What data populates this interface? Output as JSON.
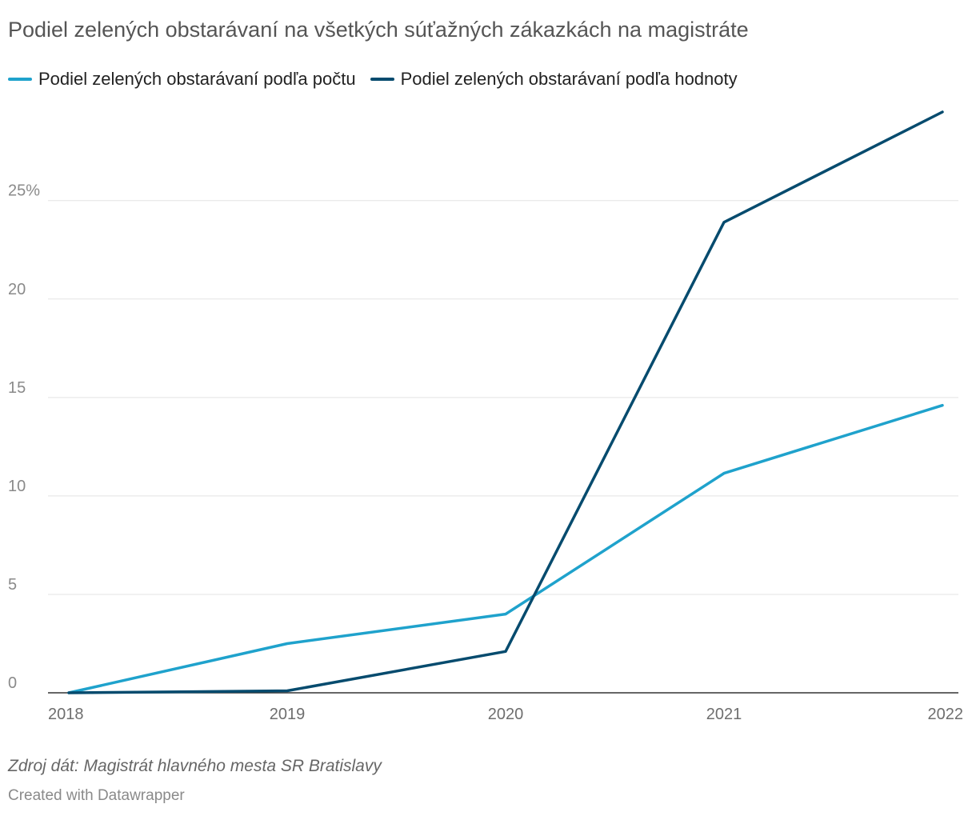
{
  "chart_data": {
    "type": "line",
    "title": "Podiel zelených obstarávaní na všetkých súťažných zákazkách na magistráte",
    "x": [
      "2018",
      "2019",
      "2020",
      "2021",
      "2022"
    ],
    "series": [
      {
        "name": "Podiel zelených obstarávaní podľa počtu",
        "color": "#1fa2cc",
        "values": [
          0,
          2.5,
          4.0,
          11.15,
          14.6
        ]
      },
      {
        "name": "Podiel zelených obstarávaní podľa hodnoty",
        "color": "#064b6e",
        "values": [
          0,
          0.1,
          2.1,
          23.9,
          29.5
        ]
      }
    ],
    "y_ticks": [
      {
        "value": 0,
        "label": "0"
      },
      {
        "value": 5,
        "label": "5"
      },
      {
        "value": 10,
        "label": "10"
      },
      {
        "value": 15,
        "label": "15"
      },
      {
        "value": 20,
        "label": "20"
      },
      {
        "value": 25,
        "label": "25%"
      }
    ],
    "ylim": [
      0,
      29.5
    ],
    "grid": true,
    "legend_position": "top-left"
  },
  "footer": {
    "source": "Zdroj dát: Magistrát hlavného mesta SR Bratislavy",
    "credit": "Created with Datawrapper"
  }
}
